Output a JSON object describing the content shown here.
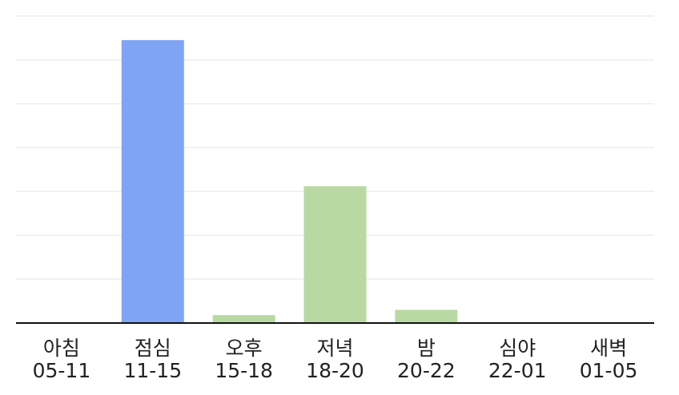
{
  "chart_data": {
    "type": "bar",
    "title": "",
    "xlabel": "",
    "ylabel": "",
    "grid": true,
    "legend": "none",
    "ylim": [
      0,
      7
    ],
    "gridlines": [
      1,
      2,
      3,
      4,
      5,
      6,
      7
    ],
    "categories": [
      {
        "name": "아침",
        "range": "05-11"
      },
      {
        "name": "점심",
        "range": "11-15"
      },
      {
        "name": "오후",
        "range": "15-18"
      },
      {
        "name": "저녁",
        "range": "18-20"
      },
      {
        "name": "밤",
        "range": "20-22"
      },
      {
        "name": "심야",
        "range": "22-01"
      },
      {
        "name": "새벽",
        "range": "01-05"
      }
    ],
    "values": [
      0,
      6.45,
      0.18,
      3.12,
      0.3,
      0,
      0
    ],
    "colors": {
      "highlight": "#7fa4f6",
      "default": "#b8d9a2",
      "gridline": "#eeeeee",
      "axis": "#111111",
      "text": "#222222"
    },
    "bar_colors": [
      "default",
      "highlight",
      "default",
      "default",
      "default",
      "default",
      "default"
    ]
  }
}
